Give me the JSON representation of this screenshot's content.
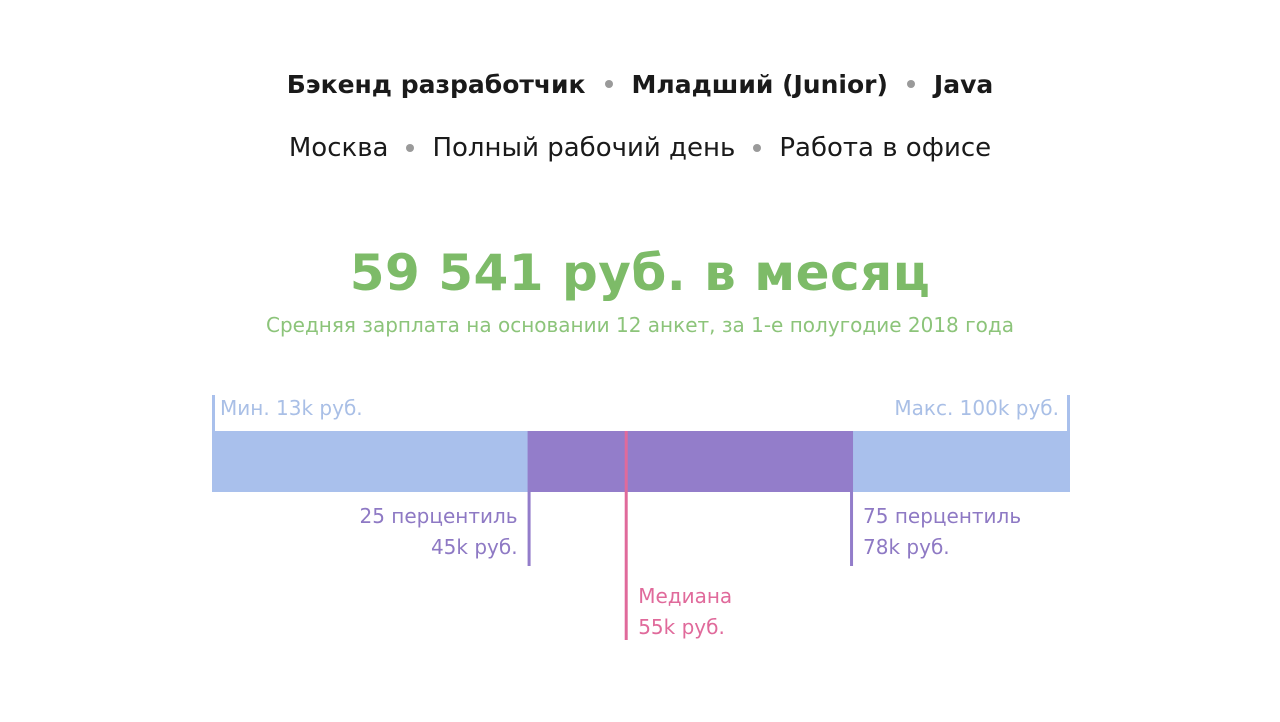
{
  "filters": {
    "primary": [
      "Бэкенд разработчик",
      "Младший (Junior)",
      "Java"
    ],
    "secondary": [
      "Москва",
      "Полный рабочий день",
      "Работа в офисе"
    ]
  },
  "headline": "59 541 руб. в месяц",
  "subline": "Средняя зарплата на основании 12 анкет, за 1-е полугодие 2018 года",
  "colors": {
    "range": "#a9c0ec",
    "iqr": "#937dca",
    "median": "#e06a9b",
    "min_max_text": "#a9bfe6",
    "percentile_text": "#8e79c4",
    "headline": "#7dbb68"
  },
  "chart_data": {
    "type": "salary-range",
    "unit": "k руб.",
    "min": 13,
    "p25": 45,
    "median": 55,
    "p75": 78,
    "max": 100,
    "labels": {
      "min": "Мин. 13k руб.",
      "max": "Макс. 100k руб.",
      "p25_title": "25 перцентиль",
      "p25_value": "45k руб.",
      "p75_title": "75 перцентиль",
      "p75_value": "78k руб.",
      "median_title": "Медиана",
      "median_value": "55k руб."
    }
  }
}
